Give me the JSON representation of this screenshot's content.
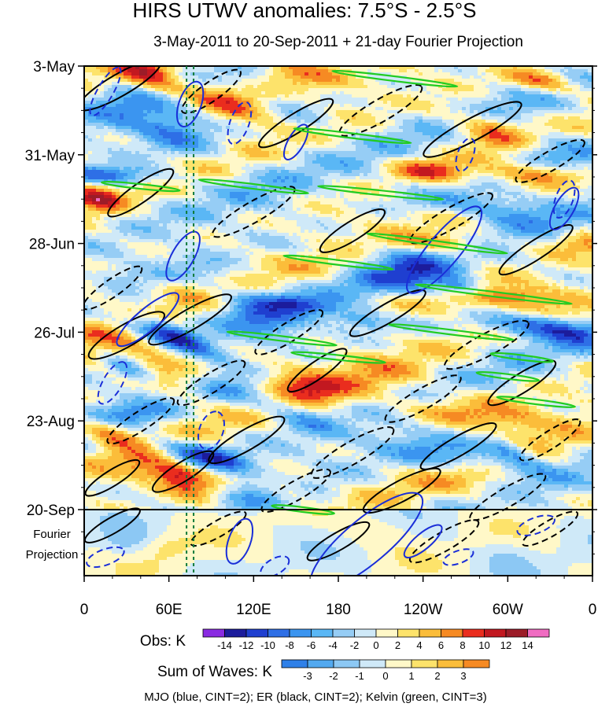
{
  "chart_data": {
    "type": "heatmap",
    "title": "HIRS UTWV anomalies: 7.5°S - 2.5°S",
    "subtitle": "3-May-2011 to 20-Sep-2011 + 21-day Fourier Projection",
    "xlabel": "",
    "ylabel": "",
    "x_ticks": [
      "0",
      "60E",
      "120E",
      "180",
      "120W",
      "60W",
      "0"
    ],
    "x_range": [
      0,
      360
    ],
    "y_ticks": [
      "3-May",
      "31-May",
      "28-Jun",
      "26-Jul",
      "23-Aug",
      "20-Sep"
    ],
    "y_range_days": [
      0,
      161
    ],
    "projection_label": "Fourier Projection",
    "projection_label_lines": [
      "Fourier",
      "Projection"
    ],
    "projection_start_day": 140,
    "projection_length_days": 21,
    "reference_longitudes": [
      72.5,
      77.5
    ],
    "obs_colorbar": {
      "label": "Obs: K",
      "levels": [
        -14,
        -12,
        -10,
        -8,
        -6,
        -4,
        -2,
        0,
        2,
        4,
        6,
        8,
        10,
        12,
        14
      ],
      "level_labels": [
        "-14",
        "-12",
        "-10",
        "-8",
        "-6",
        "-4",
        "-2",
        "0",
        "2",
        "4",
        "6",
        "8",
        "10",
        "12",
        "14"
      ],
      "colors": [
        "#8a2be2",
        "#1c1c9c",
        "#1f3fd0",
        "#2e6fe6",
        "#3b95f0",
        "#5ab7f5",
        "#96cdf5",
        "#cfe9f8",
        "#fff8c8",
        "#fde36b",
        "#fbbd3a",
        "#f68a23",
        "#ea2d1e",
        "#c21820",
        "#9c1c28",
        "#f06cc2"
      ]
    },
    "waves_colorbar": {
      "label": "Sum of Waves: K",
      "levels": [
        -3,
        -2,
        -1,
        0,
        1,
        2,
        3
      ],
      "level_labels": [
        "-3",
        "-2",
        "-1",
        "0",
        "1",
        "2",
        "3"
      ],
      "colors": [
        "#2f80e8",
        "#52a9f0",
        "#8cc8f4",
        "#cfe9f8",
        "#fff8c8",
        "#fde36b",
        "#fbbd3a",
        "#f68a23"
      ]
    },
    "contour_legend": "MJO (blue, CINT=2); ER (black, CINT=2); Kelvin (green, CINT=3)",
    "series": [
      {
        "name": "MJO",
        "color": "#1a2ed8",
        "cint": 2
      },
      {
        "name": "ER",
        "color": "#000000",
        "cint": 2
      },
      {
        "name": "Kelvin",
        "color": "#22cc22",
        "cint": 3
      }
    ]
  }
}
